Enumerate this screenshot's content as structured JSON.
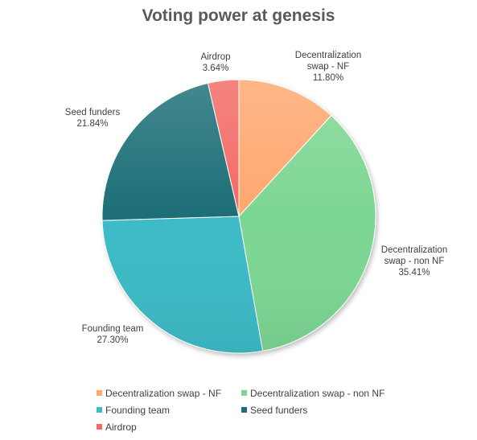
{
  "chart_data": {
    "type": "pie",
    "title": "Voting power at genesis",
    "slices": [
      {
        "name": "Decentralization swap - NF",
        "label_lines": [
          "Decentralization",
          "swap - NF",
          "11.80%"
        ],
        "value": 11.8,
        "color": "#FFA76E"
      },
      {
        "name": "Decentralization swap - non NF",
        "label_lines": [
          "Decentralization",
          "swap - non NF",
          "35.41%"
        ],
        "value": 35.41,
        "color": "#7BD693"
      },
      {
        "name": "Founding team",
        "label_lines": [
          "Founding team",
          "27.30%"
        ],
        "value": 27.3,
        "color": "#3DBBC6"
      },
      {
        "name": "Seed funders",
        "label_lines": [
          "Seed funders",
          "21.84%"
        ],
        "value": 21.84,
        "color": "#1F6E77"
      },
      {
        "name": "Airdrop",
        "label_lines": [
          "Airdrop",
          "3.64%"
        ],
        "value": 3.64,
        "color": "#F26B63"
      }
    ],
    "legend_position": "bottom"
  }
}
